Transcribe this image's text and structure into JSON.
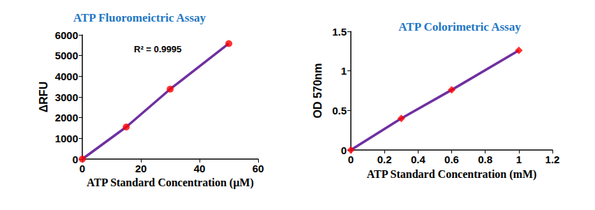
{
  "chart_data": [
    {
      "type": "line",
      "title": "ATP Fluoromeictric Assay",
      "annotations": [
        "R² = 0.9995"
      ],
      "x_label": "ATP Standard Concentration (µM)",
      "y_label": "ΔRFU",
      "x": [
        0,
        15,
        30,
        50
      ],
      "series": [
        {
          "type": "line",
          "color": "#7030a0",
          "line_style": "solid",
          "values": [
            0,
            1550,
            3380,
            5580
          ]
        },
        {
          "type": "scatter",
          "color": "#ff0000",
          "marker": "circle",
          "values": [
            0,
            1550,
            3380,
            5580
          ]
        }
      ],
      "xlim": [
        0,
        60
      ],
      "xticks": [
        0,
        20,
        40,
        60
      ],
      "ylim": [
        0,
        6000
      ],
      "yticks": [
        0,
        1000,
        2000,
        3000,
        4000,
        5000,
        6000
      ],
      "grid": false
    },
    {
      "type": "line",
      "title": "ATP Colorimetric Assay",
      "x_label": "ATP Standard Concentration (mM)",
      "y_label": "OD 570nm",
      "x": [
        0,
        0.3,
        0.6,
        1
      ],
      "series": [
        {
          "type": "line",
          "color": "#7030a0",
          "line_style": "solid",
          "values": [
            0,
            0.4,
            0.76,
            1.26
          ]
        },
        {
          "type": "scatter",
          "color": "#ff0000",
          "marker": "diamond",
          "values": [
            0,
            0.4,
            0.76,
            1.26
          ]
        }
      ],
      "xlim": [
        0,
        1.2
      ],
      "xticks": [
        0,
        0.2,
        0.4,
        0.6,
        0.8,
        1,
        1.2
      ],
      "ylim": [
        0,
        1.5
      ],
      "yticks": [
        0,
        0.5,
        1,
        1.5
      ],
      "grid": false
    }
  ]
}
